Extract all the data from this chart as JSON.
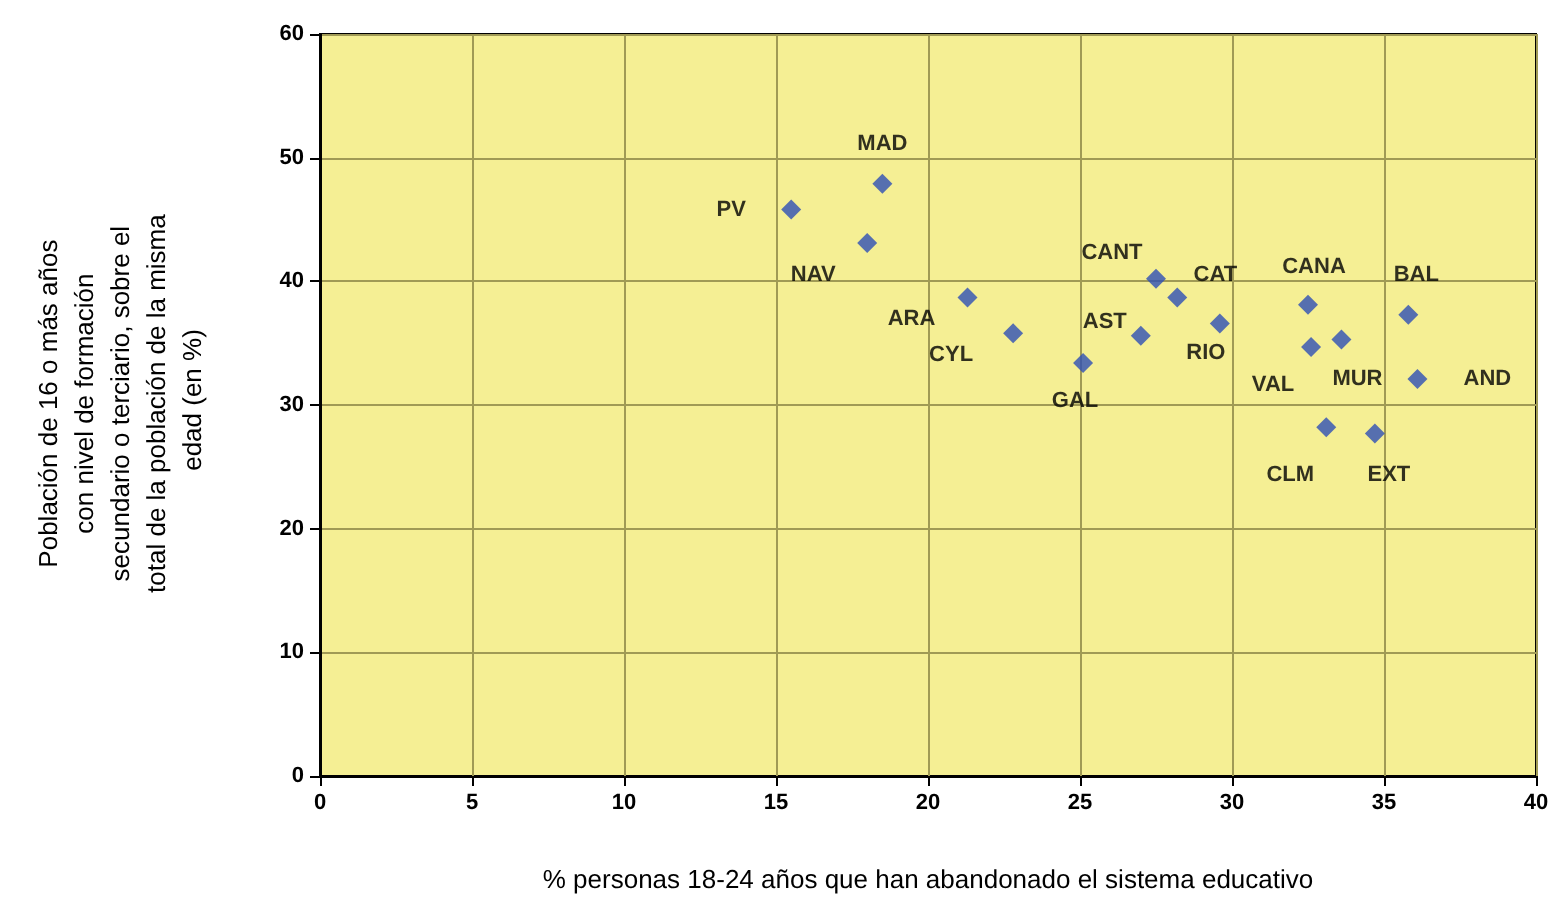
{
  "chart_data": {
    "type": "scatter",
    "xlabel": "% personas 18-24 años que han abandonado el sistema educativo",
    "ylabel": "Población de 16 o más años con nivel de formación secundario o terciario, sobre el total de la población de la misma edad (en %)",
    "x": [
      15.5,
      18.5,
      18.0,
      21.3,
      22.8,
      25.1,
      27.0,
      27.5,
      28.2,
      29.6,
      32.5,
      32.6,
      33.6,
      35.8,
      36.1,
      33.1,
      34.7
    ],
    "values": [
      45.8,
      47.9,
      43.1,
      38.7,
      35.8,
      33.4,
      35.6,
      40.2,
      38.7,
      36.6,
      38.1,
      34.7,
      35.3,
      37.3,
      32.1,
      28.2,
      27.7
    ],
    "color": "#2e4fb5",
    "marker": "diamond",
    "grid": true,
    "xlim": [
      0,
      40
    ],
    "xticks": [
      0,
      5,
      10,
      15,
      20,
      25,
      30,
      35,
      40
    ],
    "ylim": [
      0,
      60
    ],
    "yticks": [
      0,
      10,
      20,
      30,
      40,
      50,
      60
    ],
    "annotations": [
      {
        "text": "PV",
        "x": 15.5,
        "y": 45.8
      },
      {
        "text": "MAD",
        "x": 18.5,
        "y": 47.9
      },
      {
        "text": "NAV",
        "x": 18.0,
        "y": 43.1
      },
      {
        "text": "ARA",
        "x": 21.3,
        "y": 38.7
      },
      {
        "text": "CYL",
        "x": 22.8,
        "y": 35.8
      },
      {
        "text": "GAL",
        "x": 25.1,
        "y": 33.4
      },
      {
        "text": "AST",
        "x": 27.0,
        "y": 35.6
      },
      {
        "text": "CANT",
        "x": 27.5,
        "y": 40.2
      },
      {
        "text": "CAT",
        "x": 28.2,
        "y": 38.7
      },
      {
        "text": "RIO",
        "x": 29.6,
        "y": 36.6
      },
      {
        "text": "CANA",
        "x": 32.5,
        "y": 38.1
      },
      {
        "text": "VAL",
        "x": 32.6,
        "y": 34.7
      },
      {
        "text": "MUR",
        "x": 33.6,
        "y": 35.3
      },
      {
        "text": "BAL",
        "x": 35.8,
        "y": 37.3
      },
      {
        "text": "AND",
        "x": 36.1,
        "y": 32.1
      },
      {
        "text": "CLM",
        "x": 33.1,
        "y": 28.2
      },
      {
        "text": "EXT",
        "x": 34.7,
        "y": 27.7
      }
    ]
  }
}
